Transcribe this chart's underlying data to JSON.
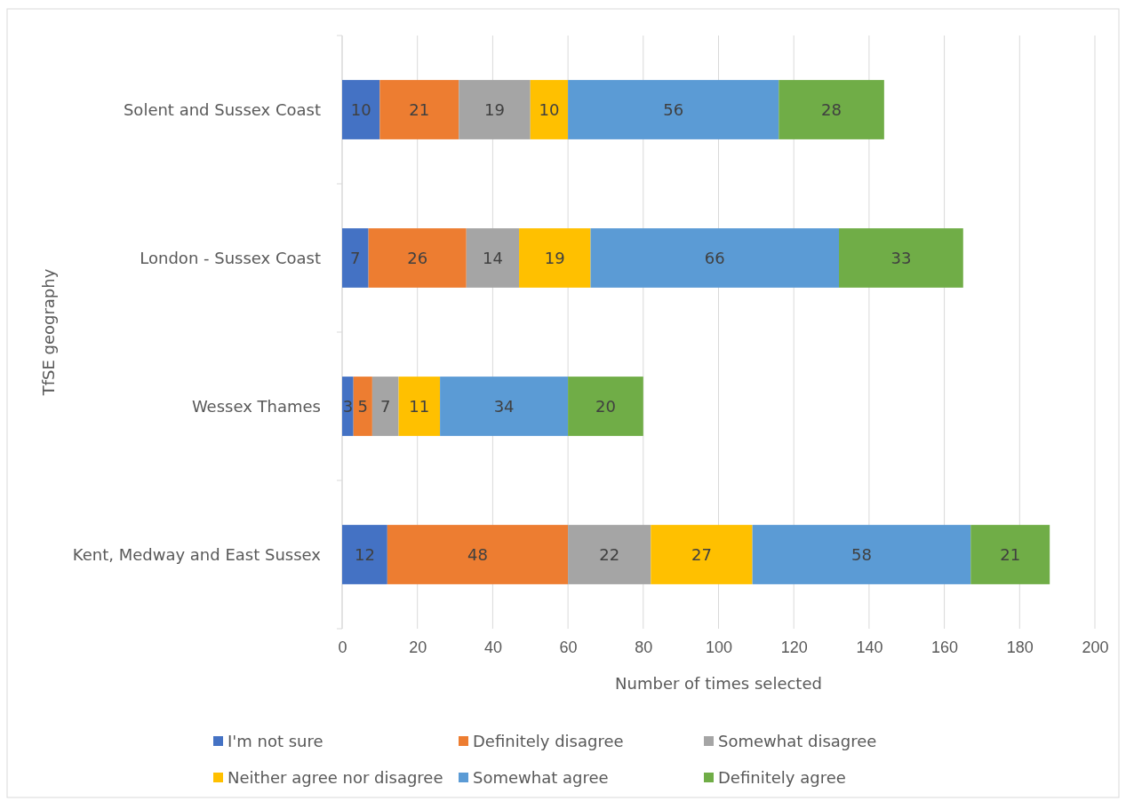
{
  "chart_data": {
    "type": "bar",
    "orientation": "horizontal",
    "stacked": true,
    "data_labels": true,
    "grid": "x",
    "legend": "bottom",
    "xlabel": "Number of times selected",
    "ylabel": "TfSE geography",
    "xlim": [
      0,
      200
    ],
    "xticks": [
      0,
      20,
      40,
      60,
      80,
      100,
      120,
      140,
      160,
      180,
      200
    ],
    "categories": [
      "Solent and Sussex Coast",
      "London - Sussex Coast",
      "Wessex Thames",
      "Kent, Medway and East Sussex"
    ],
    "series": [
      {
        "name": "I'm not sure",
        "color": "#4472c4",
        "values": [
          10,
          7,
          3,
          12
        ]
      },
      {
        "name": "Definitely disagree",
        "color": "#ed7d31",
        "values": [
          21,
          26,
          5,
          48
        ]
      },
      {
        "name": "Somewhat disagree",
        "color": "#a5a5a5",
        "values": [
          19,
          14,
          7,
          22
        ]
      },
      {
        "name": "Neither agree nor disagree",
        "color": "#ffc000",
        "values": [
          10,
          19,
          11,
          27
        ]
      },
      {
        "name": "Somewhat agree",
        "color": "#5b9bd5",
        "values": [
          56,
          66,
          34,
          58
        ]
      },
      {
        "name": "Definitely agree",
        "color": "#70ad47",
        "values": [
          28,
          33,
          20,
          21
        ]
      }
    ]
  }
}
